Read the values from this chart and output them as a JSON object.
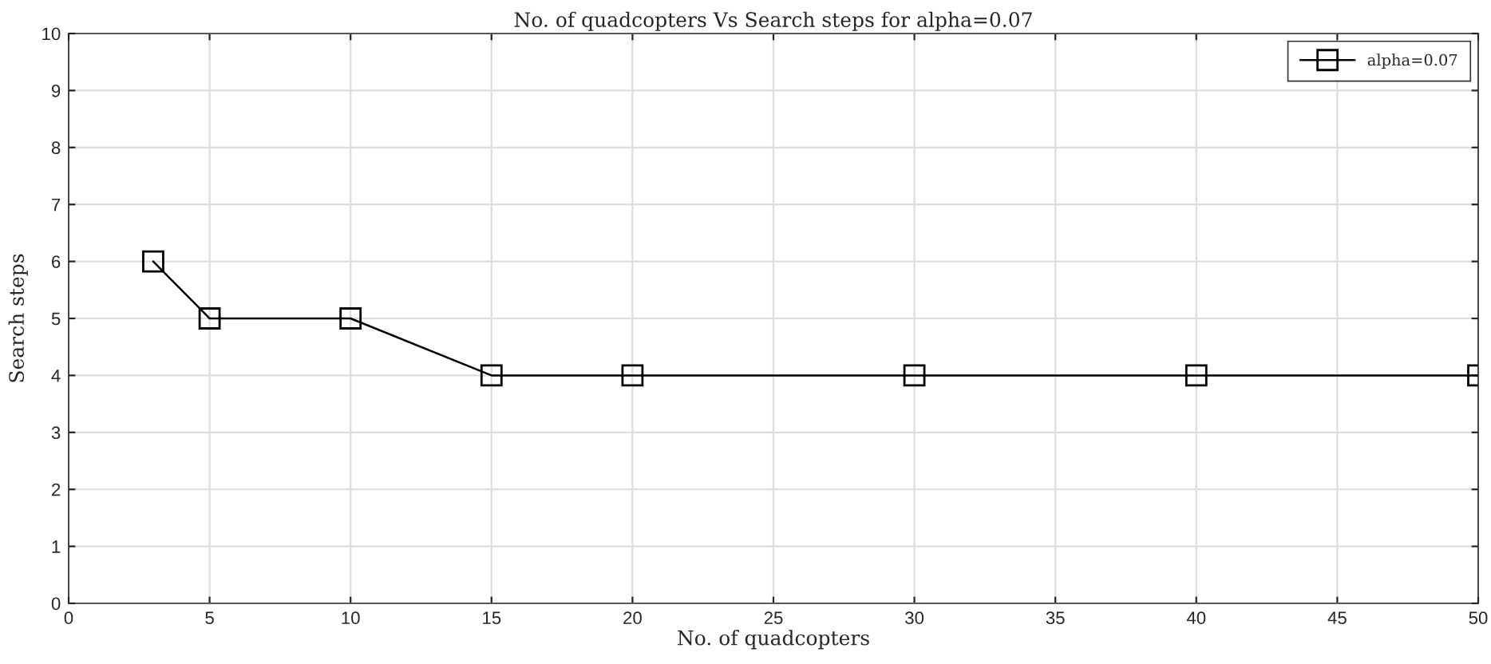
{
  "chart_data": {
    "type": "line",
    "title": "No. of quadcopters Vs Search steps for alpha=0.07",
    "xlabel": "No. of quadcopters",
    "ylabel": "Search steps",
    "x": [
      3,
      5,
      10,
      15,
      20,
      30,
      40,
      50
    ],
    "series": [
      {
        "name": "alpha=0.07",
        "color": "#000000",
        "values": [
          6,
          5,
          5,
          4,
          4,
          4,
          4,
          4
        ]
      }
    ],
    "xlim": [
      0,
      50
    ],
    "xticks": [
      0,
      5,
      10,
      15,
      20,
      25,
      30,
      35,
      40,
      45,
      50
    ],
    "ylim": [
      0,
      10
    ],
    "yticks": [
      0,
      1,
      2,
      3,
      4,
      5,
      6,
      7,
      8,
      9,
      10
    ],
    "grid": true,
    "legend": "top right",
    "marker": "square",
    "line_style": "solid"
  }
}
